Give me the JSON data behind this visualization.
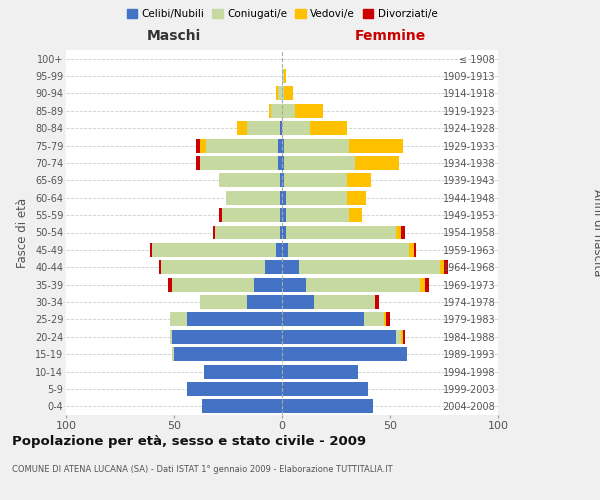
{
  "age_groups": [
    "0-4",
    "5-9",
    "10-14",
    "15-19",
    "20-24",
    "25-29",
    "30-34",
    "35-39",
    "40-44",
    "45-49",
    "50-54",
    "55-59",
    "60-64",
    "65-69",
    "70-74",
    "75-79",
    "80-84",
    "85-89",
    "90-94",
    "95-99",
    "100+"
  ],
  "birth_years": [
    "2004-2008",
    "1999-2003",
    "1994-1998",
    "1989-1993",
    "1984-1988",
    "1979-1983",
    "1974-1978",
    "1969-1973",
    "1964-1968",
    "1959-1963",
    "1954-1958",
    "1949-1953",
    "1944-1948",
    "1939-1943",
    "1934-1938",
    "1929-1933",
    "1924-1928",
    "1919-1923",
    "1914-1918",
    "1909-1913",
    "≤ 1908"
  ],
  "colors": {
    "celibe": "#4472c4",
    "coniugato": "#c5d9a0",
    "vedovo": "#ffc000",
    "divorziato": "#cc0000"
  },
  "males": {
    "celibe": [
      37,
      44,
      36,
      50,
      51,
      44,
      16,
      13,
      8,
      3,
      1,
      1,
      1,
      1,
      2,
      2,
      1,
      0,
      0,
      0,
      0
    ],
    "coniugato": [
      0,
      0,
      0,
      1,
      1,
      8,
      22,
      38,
      48,
      57,
      30,
      27,
      25,
      28,
      36,
      33,
      15,
      5,
      2,
      0,
      0
    ],
    "vedovo": [
      0,
      0,
      0,
      0,
      0,
      0,
      0,
      0,
      0,
      0,
      0,
      0,
      0,
      0,
      0,
      3,
      5,
      1,
      1,
      0,
      0
    ],
    "divorziato": [
      0,
      0,
      0,
      0,
      0,
      0,
      0,
      2,
      1,
      1,
      1,
      1,
      0,
      0,
      2,
      2,
      0,
      0,
      0,
      0,
      0
    ]
  },
  "females": {
    "nubile": [
      42,
      40,
      35,
      58,
      53,
      38,
      15,
      11,
      8,
      3,
      2,
      2,
      2,
      1,
      1,
      1,
      0,
      0,
      0,
      0,
      0
    ],
    "coniugata": [
      0,
      0,
      0,
      0,
      2,
      9,
      28,
      53,
      65,
      56,
      51,
      29,
      28,
      29,
      33,
      30,
      13,
      6,
      1,
      1,
      0
    ],
    "vedova": [
      0,
      0,
      0,
      0,
      1,
      1,
      0,
      2,
      2,
      2,
      2,
      6,
      9,
      11,
      20,
      25,
      17,
      13,
      4,
      1,
      0
    ],
    "divorziata": [
      0,
      0,
      0,
      0,
      1,
      2,
      2,
      2,
      2,
      1,
      2,
      0,
      0,
      0,
      0,
      0,
      0,
      0,
      0,
      0,
      0
    ]
  },
  "title": "Popolazione per età, sesso e stato civile - 2009",
  "subtitle": "COMUNE DI ATENA LUCANA (SA) - Dati ISTAT 1° gennaio 2009 - Elaborazione TUTTITALIA.IT",
  "xlabel_left": "Maschi",
  "xlabel_right": "Femmine",
  "ylabel_left": "Fasce di età",
  "ylabel_right": "Anni di nascita",
  "xlim": 100,
  "legend_labels": [
    "Celibi/Nubili",
    "Coniugati/e",
    "Vedovi/e",
    "Divorziati/e"
  ],
  "bg_color": "#f0f0f0",
  "plot_bg": "#ffffff",
  "grid_color": "#cccccc"
}
